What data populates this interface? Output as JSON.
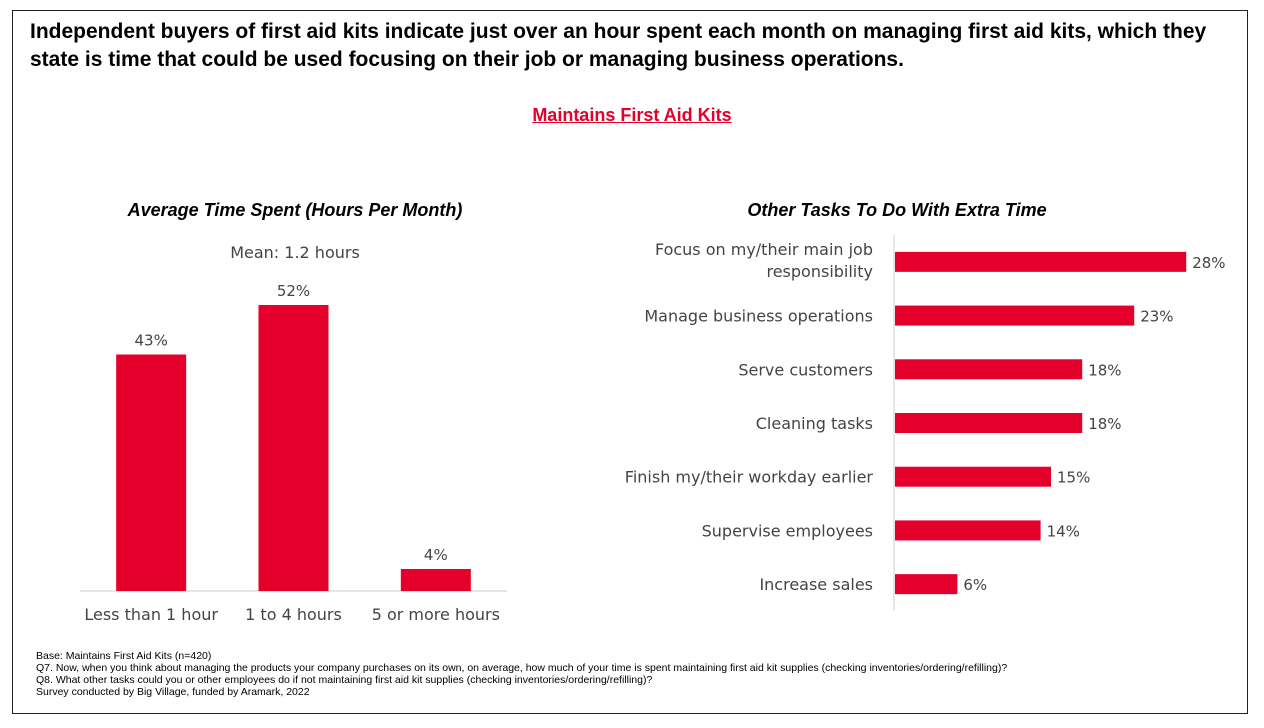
{
  "headline": "Independent buyers of first aid kits indicate just over an hour spent each month on managing first aid kits, which they state is time that could be used focusing on their job or managing business operations.",
  "section_title": "Maintains First Aid Kits",
  "colors": {
    "bar": "#e4002b",
    "axis": "#cccccc",
    "text": "#444444"
  },
  "chart_data": [
    {
      "type": "bar",
      "title": "Average Time Spent (Hours Per Month)",
      "subtitle": "Mean: 1.2 hours",
      "categories": [
        "Less than 1 hour",
        "1 to 4 hours",
        "5 or more hours"
      ],
      "values": [
        43,
        52,
        4
      ],
      "labels": [
        "43%",
        "52%",
        "4%"
      ],
      "unit": "%",
      "ylim": [
        0,
        60
      ],
      "grid": false,
      "legend": "none"
    },
    {
      "type": "bar",
      "orientation": "horizontal",
      "title": "Other Tasks To Do With Extra Time",
      "categories": [
        [
          "Focus on my/their main job",
          "responsibility"
        ],
        [
          "Manage business operations"
        ],
        [
          "Serve customers"
        ],
        [
          "Cleaning tasks"
        ],
        [
          "Finish my/their workday earlier"
        ],
        [
          "Supervise employees"
        ],
        [
          "Increase sales"
        ]
      ],
      "values": [
        28,
        23,
        18,
        18,
        15,
        14,
        6
      ],
      "labels": [
        "28%",
        "23%",
        "18%",
        "18%",
        "15%",
        "14%",
        "6%"
      ],
      "unit": "%",
      "xlim": [
        0,
        30
      ],
      "grid": false,
      "legend": "none"
    }
  ],
  "footnotes": [
    "Base: Maintains First Aid Kits (n=420)",
    "Q7. Now, when you think about managing the products your company purchases on its own, on average, how much of your time is spent maintaining first aid kit supplies (checking inventories/ordering/refilling)?",
    "Q8. What other tasks could you or other employees do if not maintaining first aid kit supplies (checking inventories/ordering/refilling)?",
    "Survey conducted by Big Village, funded by Aramark, 2022"
  ]
}
